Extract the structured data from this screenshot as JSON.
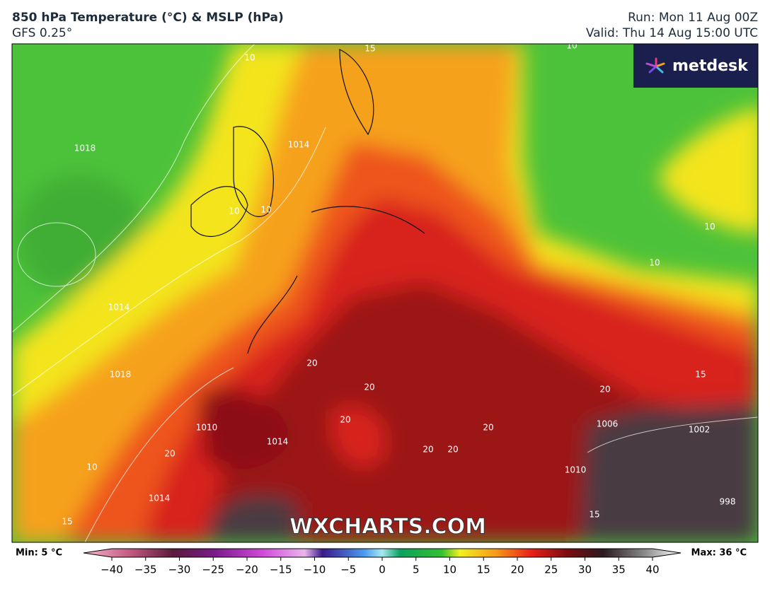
{
  "header": {
    "title": "850 hPa Temperature (°C) & MSLP (hPa)",
    "model": "GFS 0.25°",
    "run": "Run: Mon 11 Aug 00Z",
    "valid": "Valid: Thu 14 Aug 15:00 UTC"
  },
  "logo": "metdesk",
  "watermark": "WXCHARTS.COM",
  "contour_labels": [
    15,
    10,
    10,
    1018,
    1014,
    10,
    10,
    10,
    10,
    1014,
    1018,
    20,
    20,
    20,
    20,
    10,
    1010,
    1014,
    1014,
    15,
    20,
    15,
    1006,
    1002,
    998,
    20,
    20,
    20,
    1010,
    15
  ],
  "colorbar": {
    "min_label": "Min: 5 °C",
    "max_label": "Max: 36 °C",
    "ticks": [
      {
        "value": -40,
        "label": "−40"
      },
      {
        "value": -35,
        "label": "−35"
      },
      {
        "value": -30,
        "label": "−30"
      },
      {
        "value": -25,
        "label": "−25"
      },
      {
        "value": -20,
        "label": "−20"
      },
      {
        "value": -15,
        "label": "−15"
      },
      {
        "value": -10,
        "label": "−10"
      },
      {
        "value": -5,
        "label": "−5"
      },
      0,
      5,
      10,
      15,
      20,
      25,
      30,
      35,
      40
    ]
  }
}
